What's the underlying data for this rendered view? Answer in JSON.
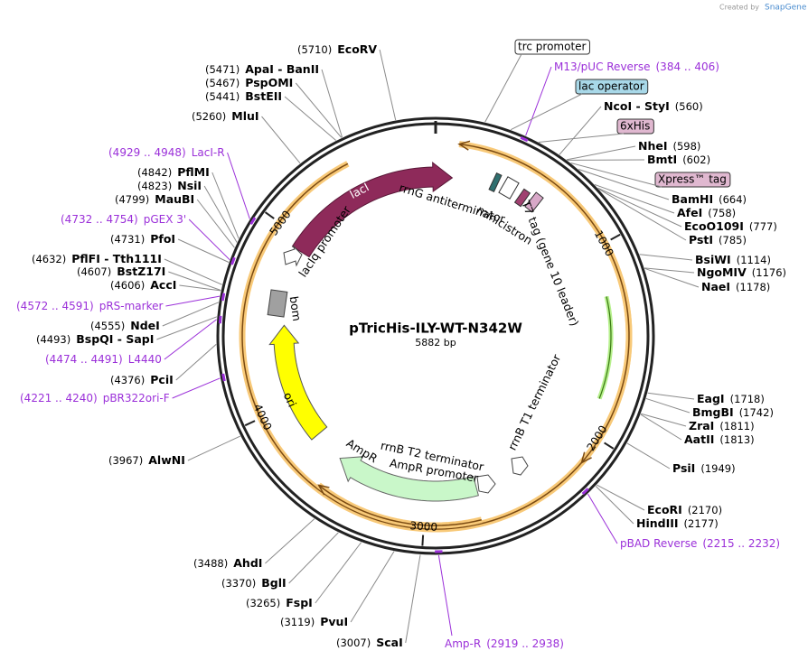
{
  "header": {
    "created_by": "Created by",
    "brand": "SnapGene"
  },
  "map": {
    "title": "pTricHis-ILY-WT-N342W",
    "size": "5882 bp"
  },
  "ticks": [
    1000,
    2000,
    3000,
    4000,
    5000
  ],
  "enzymes_left": [
    {
      "pos": "(5710)",
      "name": "EcoRV"
    },
    {
      "pos": "(5471)",
      "name": "ApaI  -  BanII"
    },
    {
      "pos": "(5467)",
      "name": "PspOMI"
    },
    {
      "pos": "(5441)",
      "name": "BstEII"
    },
    {
      "pos": "(5260)",
      "name": "MluI"
    },
    {
      "pos": "(4842)",
      "name": "PflMI"
    },
    {
      "pos": "(4823)",
      "name": "NsiI"
    },
    {
      "pos": "(4799)",
      "name": "MauBI"
    },
    {
      "pos": "(4731)",
      "name": "PfoI"
    },
    {
      "pos": "(4632)",
      "name": "PflFI  -  Tth111I"
    },
    {
      "pos": "(4607)",
      "name": "BstZ17I"
    },
    {
      "pos": "(4606)",
      "name": "AccI"
    },
    {
      "pos": "(4555)",
      "name": "NdeI"
    },
    {
      "pos": "(4493)",
      "name": "BspQI  -  SapI"
    },
    {
      "pos": "(4376)",
      "name": "PciI"
    },
    {
      "pos": "(3967)",
      "name": "AlwNI"
    },
    {
      "pos": "(3488)",
      "name": "AhdI"
    },
    {
      "pos": "(3370)",
      "name": "BglI"
    },
    {
      "pos": "(3265)",
      "name": "FspI"
    },
    {
      "pos": "(3119)",
      "name": "PvuI"
    },
    {
      "pos": "(3007)",
      "name": "ScaI"
    }
  ],
  "enzymes_right": [
    {
      "name": "NcoI  -  StyI",
      "pos": "(560)"
    },
    {
      "name": "NheI",
      "pos": "(598)"
    },
    {
      "name": "BmtI",
      "pos": "(602)"
    },
    {
      "name": "BamHI",
      "pos": "(664)"
    },
    {
      "name": "AfeI",
      "pos": "(758)"
    },
    {
      "name": "EcoO109I",
      "pos": "(777)"
    },
    {
      "name": "PstI",
      "pos": "(785)"
    },
    {
      "name": "BsiWI",
      "pos": "(1114)"
    },
    {
      "name": "NgoMIV",
      "pos": "(1176)"
    },
    {
      "name": "NaeI",
      "pos": "(1178)"
    },
    {
      "name": "EagI",
      "pos": "(1718)"
    },
    {
      "name": "BmgBI",
      "pos": "(1742)"
    },
    {
      "name": "ZraI",
      "pos": "(1811)"
    },
    {
      "name": "AatII",
      "pos": "(1813)"
    },
    {
      "name": "PsiI",
      "pos": "(1949)"
    },
    {
      "name": "EcoRI",
      "pos": "(2170)"
    },
    {
      "name": "HindIII",
      "pos": "(2177)"
    }
  ],
  "primers": [
    {
      "name": "M13/pUC Reverse",
      "range": "(384 .. 406)"
    },
    {
      "name": "LacI-R",
      "range": "(4929 .. 4948)"
    },
    {
      "name": "pGEX 3'",
      "range": "(4732 .. 4754)"
    },
    {
      "name": "pRS-marker",
      "range": "(4572 .. 4591)"
    },
    {
      "name": "L4440",
      "range": "(4474 .. 4491)"
    },
    {
      "name": "pBR322ori-F",
      "range": "(4221 .. 4240)"
    },
    {
      "name": "pBAD Reverse",
      "range": "(2215 .. 2232)"
    },
    {
      "name": "Amp-R",
      "range": "(2919 .. 2938)"
    }
  ],
  "boxed_features": [
    "trc promoter",
    "lac operator",
    "6xHis",
    "Xpress™ tag"
  ],
  "features": [
    "lacI",
    "rrnG antiterminator",
    "minicistron",
    "T7 tag (gene 10 leader)",
    "rrnB T1 terminator",
    "rrnB T2 terminator",
    "AmpR promoter",
    "AmpR",
    "ori",
    "bom",
    "lacIq promoter"
  ]
}
